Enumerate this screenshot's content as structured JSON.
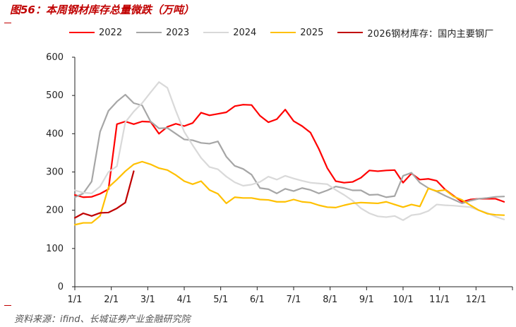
{
  "title": "图56：本周钢材库存总量微跌（万吨）",
  "source": "资料来源：ifind、长城证券产业金融研究院",
  "colors": {
    "2022": "#ff0000",
    "2023": "#a6a6a6",
    "2024": "#d9d9d9",
    "2025": "#ffc000",
    "2026": "#c00000",
    "title": "#c00000"
  },
  "chart_data": {
    "type": "line",
    "title": "图56：本周钢材库存总量微跌（万吨）",
    "xlabel": "",
    "ylabel": "",
    "x_ticks": [
      "1/1",
      "2/1",
      "3/1",
      "4/1",
      "5/1",
      "6/1",
      "7/1",
      "8/1",
      "9/1",
      "10/1",
      "11/1",
      "12/1"
    ],
    "x_unit": "week",
    "xlim": [
      0,
      52
    ],
    "ylim": [
      0,
      600
    ],
    "y_ticks": [
      "0",
      "100",
      "200",
      "300",
      "400",
      "500",
      "600"
    ],
    "grid": false,
    "legend_position": "top",
    "series": [
      {
        "name": "2022",
        "color": "#ff0000",
        "values": [
          240,
          234,
          235,
          243,
          255,
          425,
          432,
          425,
          432,
          431,
          400,
          418,
          426,
          420,
          428,
          455,
          448,
          452,
          456,
          472,
          476,
          475,
          447,
          430,
          438,
          463,
          433,
          420,
          403,
          360,
          310,
          276,
          272,
          274,
          285,
          304,
          302,
          304,
          305,
          272,
          296,
          280,
          282,
          277,
          254,
          238,
          222,
          228,
          230,
          230,
          230,
          222
        ]
      },
      {
        "name": "2023",
        "color": "#a6a6a6",
        "values": [
          234,
          244,
          275,
          405,
          460,
          484,
          502,
          480,
          474,
          432,
          414,
          415,
          400,
          385,
          383,
          376,
          374,
          380,
          340,
          316,
          308,
          293,
          258,
          255,
          244,
          256,
          250,
          258,
          253,
          244,
          252,
          262,
          258,
          252,
          252,
          240,
          241,
          234,
          237,
          290,
          298,
          272,
          258,
          249,
          238,
          228,
          218,
          225,
          230,
          232,
          235,
          236
        ]
      },
      {
        "name": "2024",
        "color": "#d9d9d9",
        "values": [
          252,
          246,
          244,
          262,
          300,
          315,
          430,
          458,
          480,
          508,
          535,
          520,
          460,
          405,
          370,
          337,
          313,
          307,
          288,
          273,
          264,
          267,
          274,
          288,
          280,
          290,
          283,
          277,
          272,
          270,
          268,
          253,
          240,
          225,
          205,
          192,
          184,
          182,
          185,
          174,
          187,
          190,
          198,
          215,
          213,
          212,
          210,
          208,
          200,
          193,
          183,
          176
        ]
      },
      {
        "name": "2025",
        "color": "#ffc000",
        "values": [
          162,
          167,
          167,
          185,
          260,
          280,
          302,
          320,
          327,
          320,
          310,
          305,
          292,
          276,
          268,
          276,
          253,
          243,
          218,
          234,
          232,
          232,
          228,
          227,
          222,
          222,
          228,
          222,
          220,
          213,
          208,
          207,
          213,
          218,
          220,
          219,
          218,
          222,
          215,
          208,
          215,
          210,
          257,
          250,
          253,
          236,
          227,
          213,
          200,
          191,
          188,
          187
        ]
      },
      {
        "name": "2026钢材库存：国内主要钢厂",
        "color": "#c00000",
        "values": [
          180,
          192,
          185,
          193,
          194,
          205,
          220,
          302
        ]
      }
    ]
  }
}
